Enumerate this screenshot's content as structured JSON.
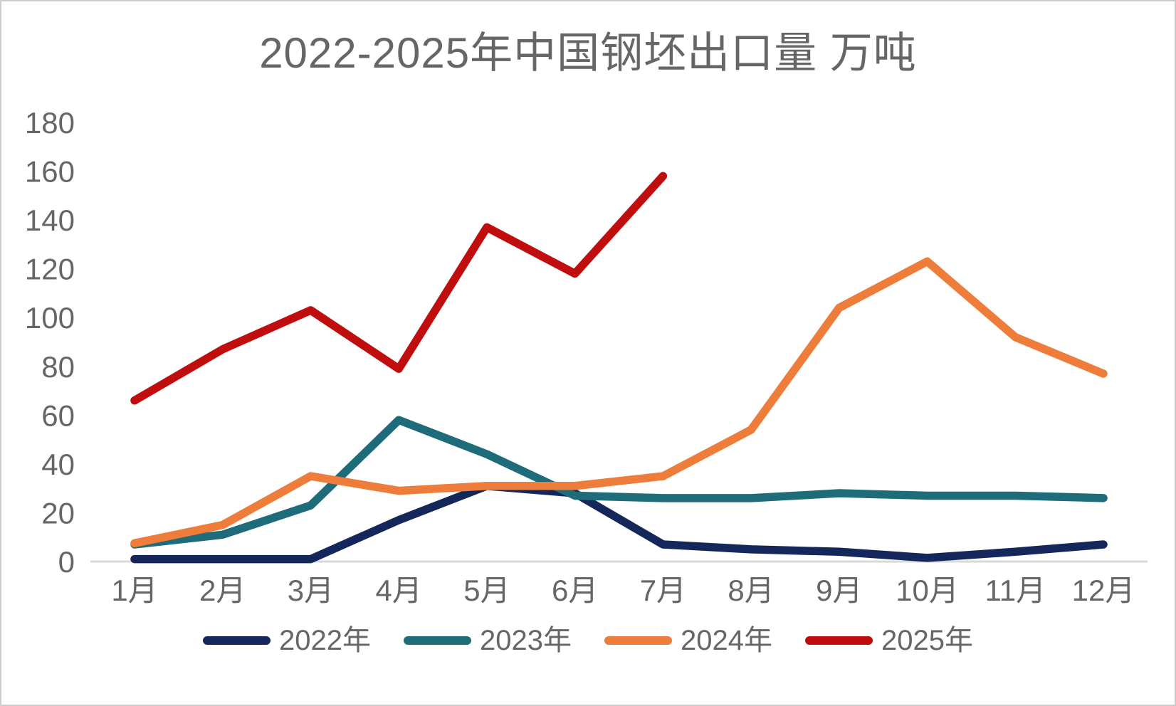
{
  "chart_data": {
    "type": "line",
    "title": "2022-2025年中国钢坯出口量 万吨",
    "categories": [
      "1月",
      "2月",
      "3月",
      "4月",
      "5月",
      "6月",
      "7月",
      "8月",
      "9月",
      "10月",
      "11月",
      "12月"
    ],
    "series": [
      {
        "name": "2022年",
        "color": "#14265a",
        "values": [
          1,
          1,
          1,
          17,
          31,
          28,
          7,
          5,
          4,
          1.5,
          4,
          7
        ]
      },
      {
        "name": "2023年",
        "color": "#1e6b79",
        "values": [
          7,
          11,
          23,
          58,
          44,
          27,
          26,
          26,
          28,
          27,
          27,
          26
        ]
      },
      {
        "name": "2024年",
        "color": "#ee7d3b",
        "values": [
          7.5,
          15,
          35,
          29,
          31,
          31,
          35,
          54,
          104,
          123,
          92,
          77
        ]
      },
      {
        "name": "2025年",
        "color": "#c00d0d",
        "values": [
          66,
          87,
          103,
          79,
          137,
          118,
          158
        ]
      }
    ],
    "xlabel": "",
    "ylabel": "",
    "ylim": [
      0,
      180
    ],
    "yticks": [
      0,
      20,
      40,
      60,
      80,
      100,
      120,
      140,
      160,
      180
    ],
    "grid": false,
    "legend_position": "bottom",
    "axis_color": "#d9d9d9",
    "text_color": "#666666"
  }
}
